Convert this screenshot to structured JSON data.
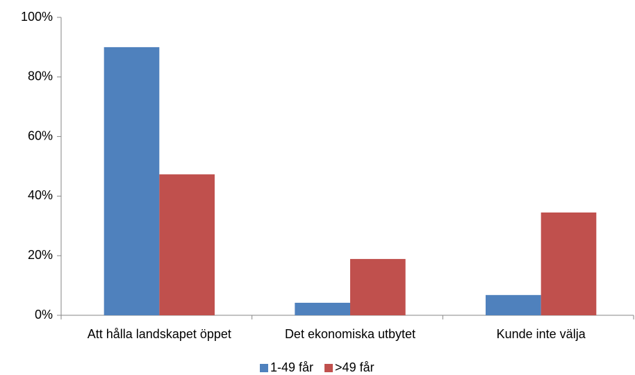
{
  "chart_data": {
    "type": "bar",
    "categories": [
      "Att hålla landskapet öppet",
      "Det ekonomiska utbytet",
      "Kunde inte välja"
    ],
    "series": [
      {
        "name": "1-49 får",
        "color": "#4f81bd",
        "values": [
          90.0,
          4.2,
          6.8
        ]
      },
      {
        "name": ">49 får",
        "color": "#c0504d",
        "values": [
          47.3,
          18.9,
          34.5
        ]
      }
    ],
    "ylim": [
      0,
      100
    ],
    "yticks": [
      {
        "value": 0,
        "label": "0%"
      },
      {
        "value": 20,
        "label": "20%"
      },
      {
        "value": 40,
        "label": "40%"
      },
      {
        "value": 60,
        "label": "60%"
      },
      {
        "value": 80,
        "label": "80%"
      },
      {
        "value": 100,
        "label": "100%"
      }
    ],
    "grid": false,
    "legend": "bottom"
  }
}
